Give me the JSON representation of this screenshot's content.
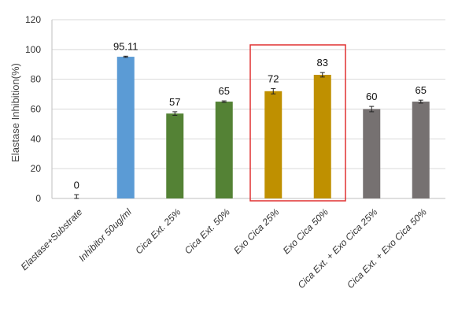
{
  "chart_data": {
    "type": "bar",
    "title": "",
    "xlabel": "",
    "ylabel": "Elastase Inhibition(%)",
    "ylim": [
      0,
      120
    ],
    "yticks": [
      0,
      20,
      40,
      60,
      80,
      100,
      120
    ],
    "grid": "horizontal",
    "legend": "none",
    "categories": [
      "Elastase+Substrate",
      "Inhibitor 50ug/ml",
      "Cica Ext. 25%",
      "Cica Ext. 50%",
      "Exo Cica 25%",
      "Exo Cica 50%",
      "Cica Ext. + Exo Cica 25%",
      "Cica Ext. + Exo Cica 50%"
    ],
    "values": [
      0,
      95.11,
      57,
      65,
      72,
      83,
      60,
      65
    ],
    "data_labels": [
      "0",
      "95.11",
      "57",
      "65",
      "72",
      "83",
      "60",
      "65"
    ],
    "errors": [
      2.5,
      0.4,
      1.2,
      0.5,
      1.8,
      1.5,
      1.8,
      1.0
    ],
    "bar_colors": [
      "#5b9bd5",
      "#5b9bd5",
      "#548235",
      "#548235",
      "#bf9000",
      "#bf9000",
      "#767171",
      "#767171"
    ],
    "highlight": {
      "categories": [
        "Exo Cica 25%",
        "Exo Cica 50%"
      ],
      "color": "#e03030"
    }
  }
}
